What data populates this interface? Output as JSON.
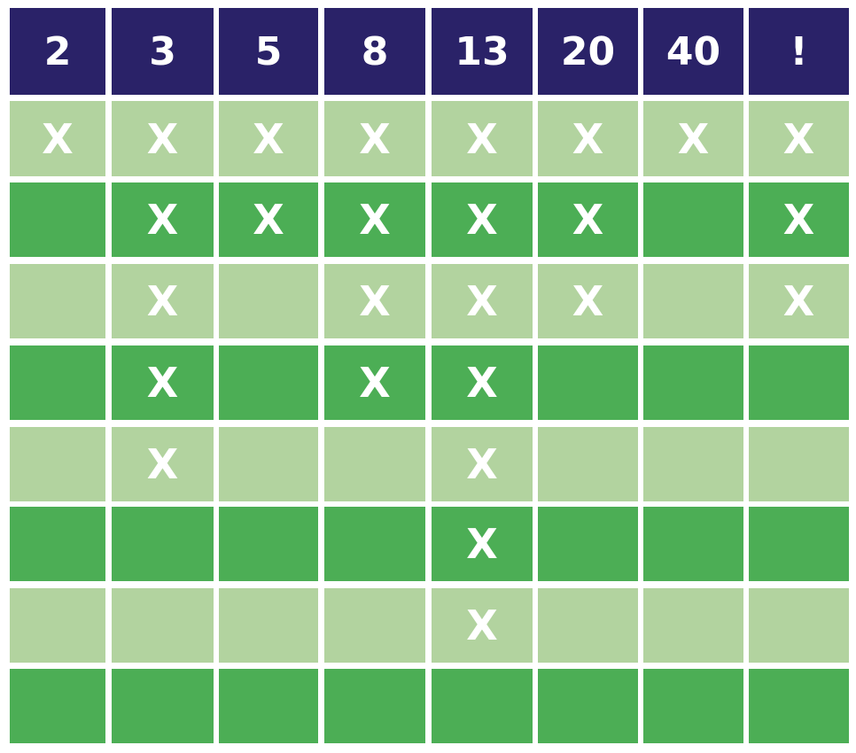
{
  "columns": [
    "2",
    "3",
    "5",
    "8",
    "13",
    "20",
    "40",
    "!"
  ],
  "rows": [
    [
      "X",
      "X",
      "X",
      "X",
      "X",
      "X",
      "X",
      "X"
    ],
    [
      "",
      "X",
      "X",
      "X",
      "X",
      "X",
      "",
      "X"
    ],
    [
      "",
      "X",
      "",
      "X",
      "X",
      "X",
      "",
      "X"
    ],
    [
      "",
      "X",
      "",
      "X",
      "X",
      "",
      "",
      ""
    ],
    [
      "",
      "X",
      "",
      "",
      "X",
      "",
      "",
      ""
    ],
    [
      "",
      "",
      "",
      "",
      "X",
      "",
      "",
      ""
    ],
    [
      "",
      "",
      "",
      "",
      "X",
      "",
      "",
      ""
    ],
    [
      "",
      "",
      "",
      "",
      "",
      "",
      "",
      ""
    ]
  ],
  "colors": {
    "header": "#2a2268",
    "row_light": "#b2d39f",
    "row_dark": "#4cae55",
    "text": "#ffffff"
  }
}
